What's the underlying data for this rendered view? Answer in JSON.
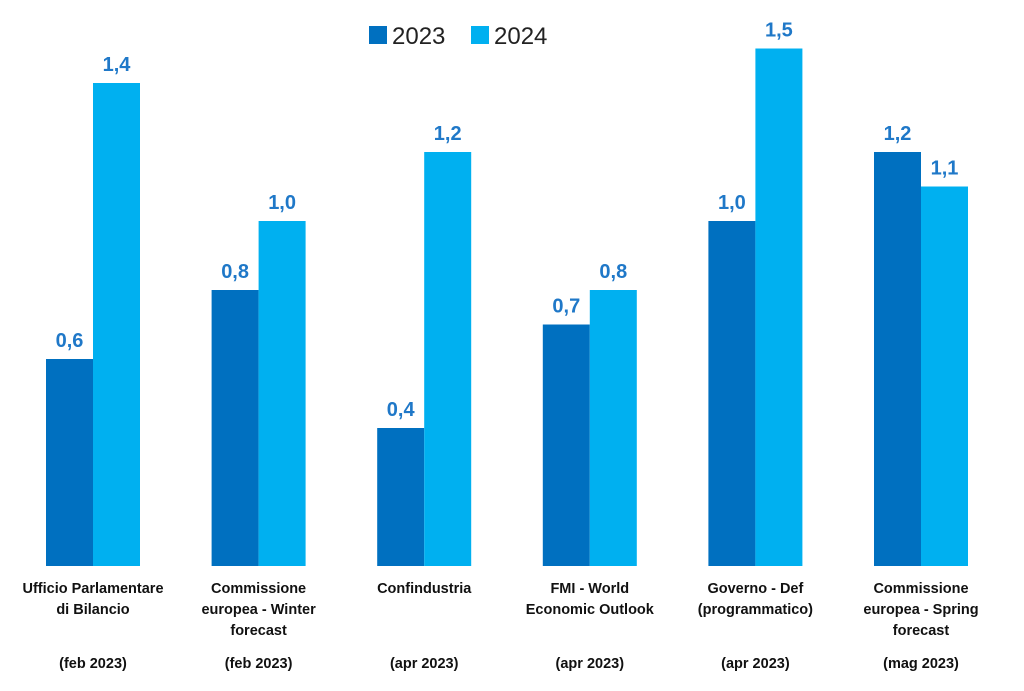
{
  "chart_data": {
    "type": "bar",
    "title": "",
    "xlabel": "",
    "ylabel": "",
    "ylim": [
      0,
      1.5
    ],
    "grid": false,
    "legend_position": "top-center",
    "categories": [
      {
        "lines": [
          "Ufficio Parlamentare",
          "di Bilancio"
        ],
        "date": "(feb 2023)"
      },
      {
        "lines": [
          "Commissione",
          "europea - Winter",
          "forecast"
        ],
        "date": "(feb 2023)"
      },
      {
        "lines": [
          "Confindustria"
        ],
        "date": "(apr 2023)"
      },
      {
        "lines": [
          "FMI - World",
          "Economic Outlook"
        ],
        "date": "(apr 2023)"
      },
      {
        "lines": [
          "Governo - Def",
          "(programmatico)"
        ],
        "date": "(apr 2023)"
      },
      {
        "lines": [
          "Commissione",
          "europea - Spring",
          "forecast"
        ],
        "date": "(mag 2023)"
      }
    ],
    "series": [
      {
        "name": "2023",
        "color": "#0070c0",
        "values": [
          0.6,
          0.8,
          0.4,
          0.7,
          1.0,
          1.2
        ],
        "labels": [
          "0,6",
          "0,8",
          "0,4",
          "0,7",
          "1,0",
          "1,2"
        ]
      },
      {
        "name": "2024",
        "color": "#00b0f0",
        "values": [
          1.4,
          1.0,
          1.2,
          0.8,
          1.5,
          1.1
        ],
        "labels": [
          "1,4",
          "1,0",
          "1,2",
          "0,8",
          "1,5",
          "1,1"
        ]
      }
    ],
    "value_label_color": "#1f78c8"
  }
}
